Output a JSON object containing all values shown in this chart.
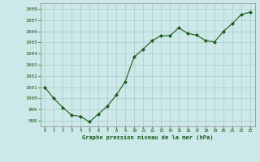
{
  "x": [
    0,
    1,
    2,
    3,
    4,
    5,
    6,
    7,
    8,
    9,
    10,
    11,
    12,
    13,
    14,
    15,
    16,
    17,
    18,
    19,
    20,
    21,
    22,
    23
  ],
  "y": [
    1001.0,
    1000.0,
    999.2,
    998.5,
    998.4,
    997.9,
    998.6,
    999.3,
    1000.3,
    1001.5,
    1003.7,
    1004.4,
    1005.15,
    1005.6,
    1005.6,
    1006.3,
    1005.8,
    1005.65,
    1005.15,
    1005.05,
    1006.0,
    1006.7,
    1007.5,
    1007.7
  ],
  "line_color": "#1a5c1a",
  "marker_color": "#1a5c1a",
  "bg_color": "#cce8e8",
  "grid_color": "#aacccc",
  "xlabel": "Graphe pression niveau de la mer (hPa)",
  "xlabel_color": "#1a5c1a",
  "tick_color": "#1a5c1a",
  "ylim": [
    997.5,
    1008.5
  ],
  "yticks": [
    998,
    999,
    1000,
    1001,
    1002,
    1003,
    1004,
    1005,
    1006,
    1007,
    1008
  ],
  "xlim": [
    -0.5,
    23.5
  ],
  "xticks": [
    0,
    1,
    2,
    3,
    4,
    5,
    6,
    7,
    8,
    9,
    10,
    11,
    12,
    13,
    14,
    15,
    16,
    17,
    18,
    19,
    20,
    21,
    22,
    23
  ]
}
